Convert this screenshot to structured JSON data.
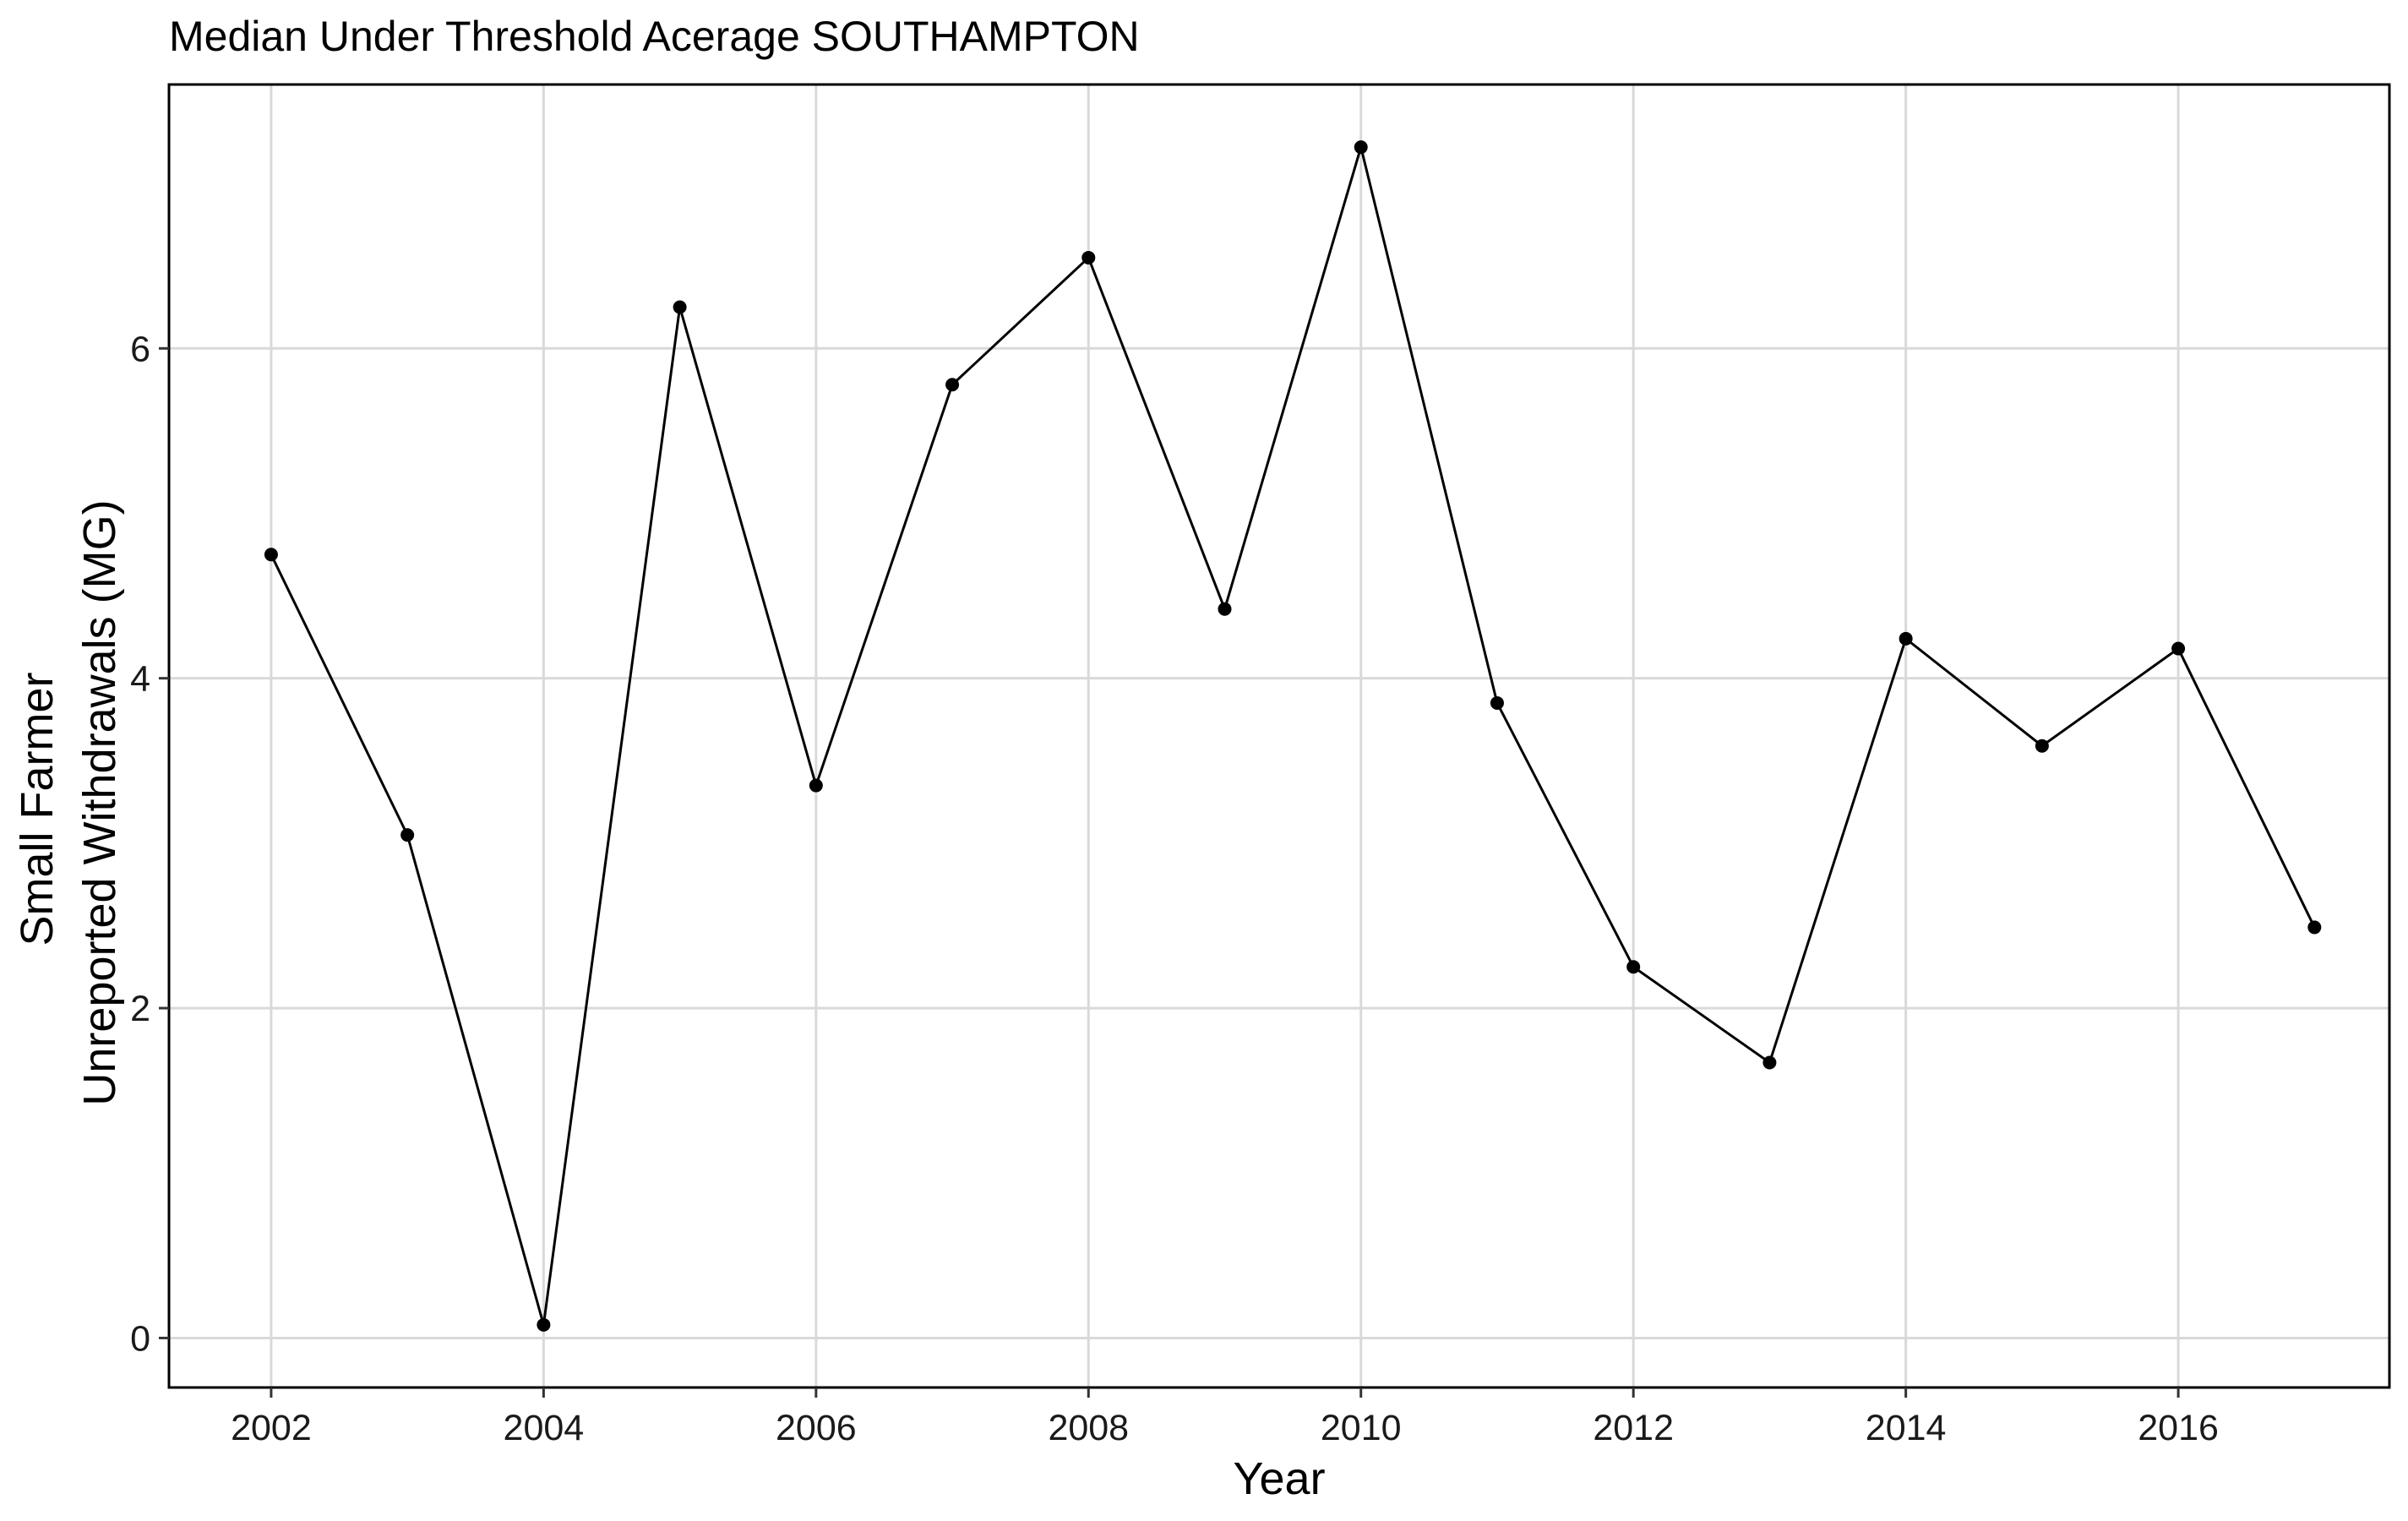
{
  "chart_data": {
    "type": "line",
    "title": "Median Under Threshold Acerage SOUTHAMPTON",
    "xlabel": "Year",
    "ylabel": [
      "Small Farmer",
      "Unreported Withdrawals (MG)"
    ],
    "xlim": [
      2001.25,
      2017.55
    ],
    "ylim": [
      -0.3,
      7.6
    ],
    "x_ticks": [
      2002,
      2004,
      2006,
      2008,
      2010,
      2012,
      2014,
      2016
    ],
    "y_ticks": [
      0,
      2,
      4,
      6
    ],
    "grid": true,
    "legend": "none",
    "series": [
      {
        "color": "#000000",
        "x": [
          2002,
          2003,
          2004,
          2005,
          2006,
          2007,
          2008,
          2009,
          2010,
          2011,
          2012,
          2013,
          2014,
          2015,
          2016,
          2017
        ],
        "y": [
          4.75,
          3.05,
          0.08,
          6.25,
          3.35,
          5.78,
          6.55,
          4.42,
          7.22,
          3.85,
          2.25,
          1.67,
          4.24,
          3.59,
          4.18,
          2.49
        ]
      }
    ]
  }
}
